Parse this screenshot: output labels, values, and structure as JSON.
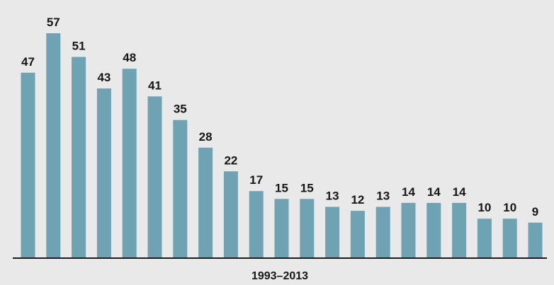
{
  "chart_data": {
    "type": "bar",
    "xlabel": "1993–2013",
    "values": [
      47,
      57,
      51,
      43,
      48,
      41,
      35,
      28,
      22,
      17,
      15,
      15,
      13,
      12,
      13,
      14,
      14,
      14,
      10,
      10,
      9
    ],
    "ylim": [
      0,
      57
    ],
    "grid": false,
    "legend": "none",
    "colors": {
      "bar": "#6ea3b3",
      "background": "#e9e9ea",
      "text": "#161616",
      "axis": "#1c1c1c"
    }
  }
}
